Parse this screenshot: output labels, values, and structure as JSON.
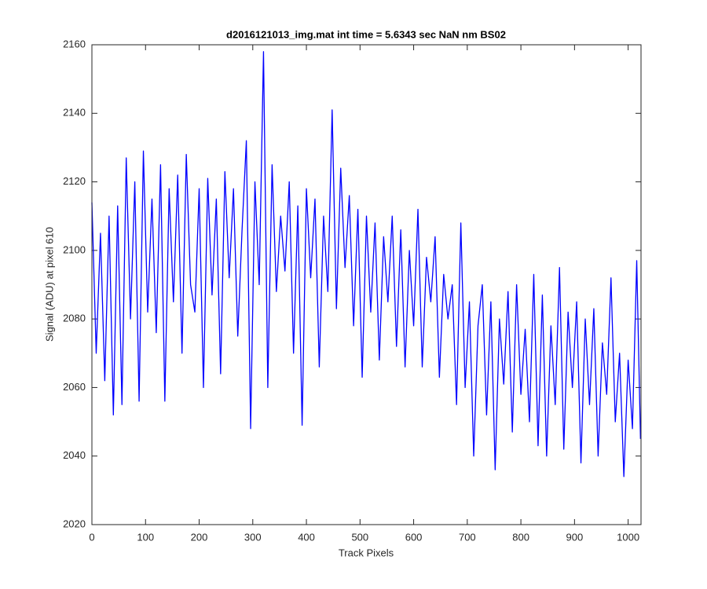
{
  "chart_data": {
    "type": "line",
    "title": "d2016121013_img.mat int time = 5.6343 sec  NaN nm BS02",
    "x_label": "Track Pixels",
    "y_label": "Signal (ADU) at pixel 610",
    "x": [
      0,
      8,
      16,
      24,
      32,
      40,
      48,
      56,
      64,
      72,
      80,
      88,
      96,
      104,
      112,
      120,
      128,
      136,
      144,
      152,
      160,
      168,
      176,
      184,
      192,
      200,
      208,
      216,
      224,
      232,
      240,
      248,
      256,
      264,
      272,
      280,
      288,
      296,
      304,
      312,
      320,
      328,
      336,
      344,
      352,
      360,
      368,
      376,
      384,
      392,
      400,
      408,
      416,
      424,
      432,
      440,
      448,
      456,
      464,
      472,
      480,
      488,
      496,
      504,
      512,
      520,
      528,
      536,
      544,
      552,
      560,
      568,
      576,
      584,
      592,
      600,
      608,
      616,
      624,
      632,
      640,
      648,
      656,
      664,
      672,
      680,
      688,
      696,
      704,
      712,
      720,
      728,
      736,
      744,
      752,
      760,
      768,
      776,
      784,
      792,
      800,
      808,
      816,
      824,
      832,
      840,
      848,
      856,
      864,
      872,
      880,
      888,
      896,
      904,
      912,
      920,
      928,
      936,
      944,
      952,
      960,
      968,
      976,
      984,
      992,
      1000,
      1008,
      1016,
      1023
    ],
    "series": [
      {
        "name": "Signal",
        "color": "#0000ff",
        "values": [
          2114,
          2070,
          2105,
          2062,
          2110,
          2052,
          2113,
          2055,
          2127,
          2080,
          2120,
          2056,
          2129,
          2082,
          2115,
          2076,
          2125,
          2056,
          2118,
          2085,
          2122,
          2070,
          2128,
          2090,
          2082,
          2118,
          2060,
          2121,
          2087,
          2115,
          2064,
          2123,
          2092,
          2118,
          2075,
          2106,
          2132,
          2048,
          2120,
          2090,
          2158,
          2060,
          2125,
          2088,
          2110,
          2094,
          2120,
          2070,
          2113,
          2049,
          2118,
          2092,
          2115,
          2066,
          2110,
          2088,
          2141,
          2083,
          2124,
          2095,
          2116,
          2078,
          2112,
          2063,
          2110,
          2082,
          2108,
          2068,
          2104,
          2085,
          2110,
          2072,
          2106,
          2066,
          2100,
          2078,
          2112,
          2066,
          2098,
          2085,
          2104,
          2063,
          2093,
          2080,
          2090,
          2055,
          2108,
          2060,
          2085,
          2040,
          2078,
          2090,
          2052,
          2085,
          2036,
          2080,
          2061,
          2088,
          2047,
          2090,
          2058,
          2077,
          2050,
          2093,
          2043,
          2087,
          2040,
          2078,
          2055,
          2095,
          2042,
          2082,
          2060,
          2085,
          2038,
          2080,
          2055,
          2083,
          2040,
          2073,
          2058,
          2092,
          2050,
          2070,
          2034,
          2068,
          2048,
          2097,
          2045
        ]
      }
    ],
    "xlim": [
      0,
      1024
    ],
    "xticks": [
      0,
      100,
      200,
      300,
      400,
      500,
      600,
      700,
      800,
      900,
      1000
    ],
    "ylim": [
      2020,
      2160
    ],
    "yticks": [
      2020,
      2040,
      2060,
      2080,
      2100,
      2120,
      2140,
      2160
    ]
  }
}
